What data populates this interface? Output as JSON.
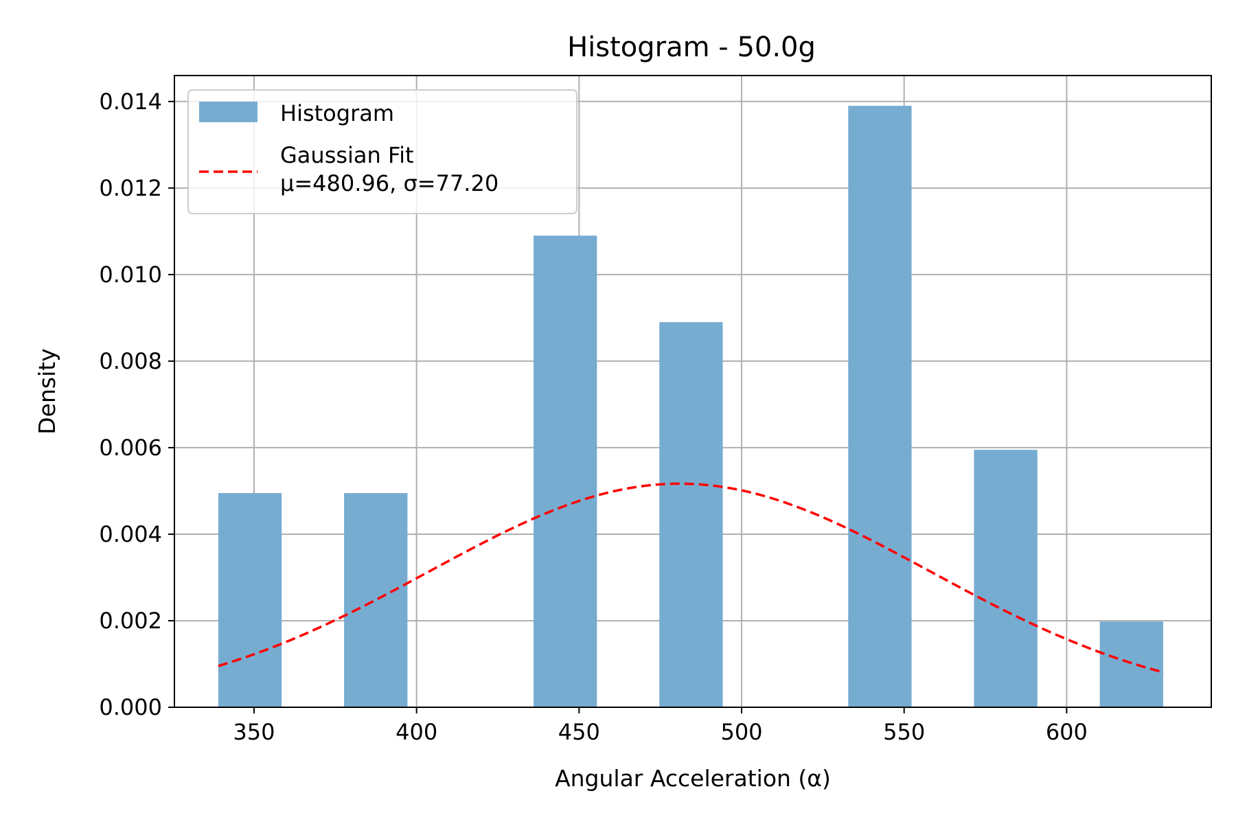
{
  "chart_data": {
    "type": "bar",
    "title": "Histogram - 50.0g",
    "xlabel": "Angular Acceleration (α)",
    "ylabel": "Density",
    "xlim": [
      325.5,
      644.5
    ],
    "ylim": [
      0,
      0.0146
    ],
    "xticks": [
      350,
      400,
      450,
      500,
      550,
      600
    ],
    "yticks": [
      0.0,
      0.002,
      0.004,
      0.006,
      0.008,
      0.01,
      0.012,
      0.014
    ],
    "ytick_labels": [
      "0.000",
      "0.002",
      "0.004",
      "0.006",
      "0.008",
      "0.010",
      "0.012",
      "0.014"
    ],
    "grid": true,
    "legend_position": "top-left",
    "bars": {
      "name": "Histogram",
      "color": "#77acd1",
      "bins": [
        {
          "left": 339.0,
          "right": 358.5,
          "density": 0.00495
        },
        {
          "left": 377.7,
          "right": 397.2,
          "density": 0.00495
        },
        {
          "left": 436.0,
          "right": 455.5,
          "density": 0.0109
        },
        {
          "left": 474.7,
          "right": 494.2,
          "density": 0.0089
        },
        {
          "left": 532.8,
          "right": 552.3,
          "density": 0.0139
        },
        {
          "left": 571.5,
          "right": 591.0,
          "density": 0.00595
        },
        {
          "left": 610.2,
          "right": 629.7,
          "density": 0.00198
        }
      ]
    },
    "fit": {
      "name": "Gaussian Fit\nμ=480.96, σ=77.20",
      "mu": 480.96,
      "sigma": 77.2,
      "x_range": [
        339.0,
        630.0
      ],
      "color": "#ff0000",
      "style": "dashed"
    }
  }
}
